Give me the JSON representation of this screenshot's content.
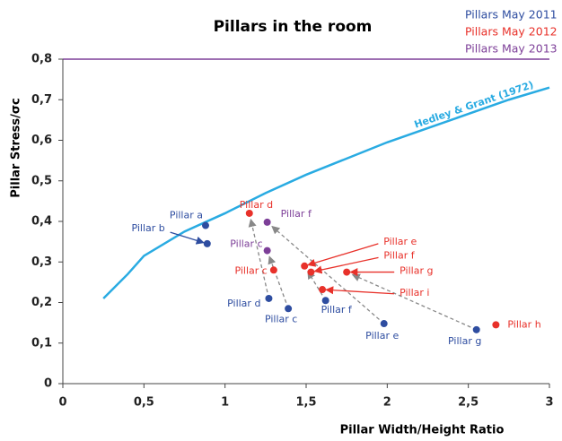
{
  "chart_data": {
    "type": "scatter",
    "title": "Pillars in the room",
    "x_label": "Pillar Width/Height Ratio",
    "y_label": "Pillar Stress/σc",
    "xlim": [
      0,
      3
    ],
    "ylim": [
      0,
      0.8
    ],
    "xticks": [
      0,
      {
        "value": 0.5,
        "label": "0,5"
      },
      1,
      {
        "value": 1.5,
        "label": "1,5"
      },
      2,
      {
        "value": 2.5,
        "label": "2,5"
      },
      3
    ],
    "yticks": [
      0,
      {
        "value": 0.1,
        "label": "0,1"
      },
      {
        "value": 0.2,
        "label": "0,2"
      },
      {
        "value": 0.3,
        "label": "0,3"
      },
      {
        "value": 0.4,
        "label": "0,4"
      },
      {
        "value": 0.5,
        "label": "0,5"
      },
      {
        "value": 0.6,
        "label": "0,6"
      },
      {
        "value": 0.7,
        "label": "0,7"
      },
      {
        "value": 0.8,
        "label": "0,8"
      }
    ],
    "grid": false,
    "curve": {
      "name": "Hedley & Grant (1972)",
      "color": "#29abe2",
      "x": [
        0.25,
        0.4,
        0.5,
        0.75,
        1,
        1.25,
        1.5,
        1.75,
        2,
        2.25,
        2.5,
        2.75,
        3
      ],
      "values": [
        0.21,
        0.27,
        0.315,
        0.375,
        0.42,
        0.47,
        0.515,
        0.555,
        0.595,
        0.63,
        0.665,
        0.7,
        0.73
      ]
    },
    "series": [
      {
        "name": "Pillars May 2011",
        "color": "#2e4da0",
        "x": [
          0.88,
          0.89,
          1.27,
          1.39,
          1.62,
          1.98,
          2.55
        ],
        "values": [
          0.39,
          0.345,
          0.21,
          0.185,
          0.205,
          0.148,
          0.133
        ],
        "labels": [
          "Pillar a",
          "Pillar b",
          "Pillar d",
          "Pillar c",
          "Pillar f",
          "Pillar e",
          "Pillar g"
        ]
      },
      {
        "name": "Pillars May 2012",
        "color": "#e8312a",
        "x": [
          1.15,
          1.3,
          1.49,
          1.53,
          1.6,
          1.75,
          2.67
        ],
        "values": [
          0.42,
          0.28,
          0.29,
          0.275,
          0.232,
          0.275,
          0.145
        ],
        "labels": [
          "Pillar d",
          "Pillar c",
          "Pillar e",
          "Pillar f",
          "Pillar i",
          "Pillar g",
          "Pillar h"
        ]
      },
      {
        "name": "Pillars May 2013",
        "color": "#7d3f98",
        "x": [
          1.26,
          1.26
        ],
        "values": [
          0.398,
          0.328
        ],
        "labels": [
          "Pillar f",
          "Pillar c"
        ]
      }
    ]
  }
}
